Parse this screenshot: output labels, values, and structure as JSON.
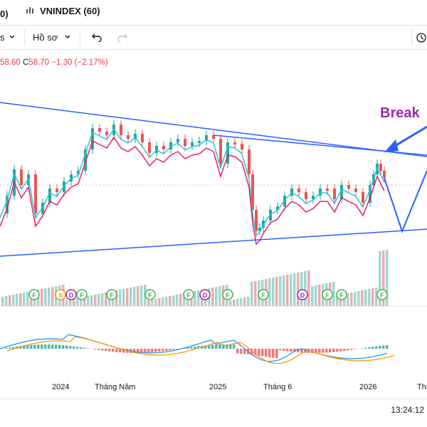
{
  "header": {
    "tab_prev_suffix": "0)",
    "active_tab": "VNINDEX (60)",
    "icon_active_tab": "chart-tab-icon"
  },
  "toolbar": {
    "item_left": "s",
    "profile_label": "Hồ sơ",
    "undo_icon": "undo-icon",
    "redo_icon": "redo-icon",
    "right_icon": "snapshot-icon"
  },
  "ohlc": {
    "l_value": "58.60",
    "c_label": "C",
    "c_value": "58.70",
    "change": "−1.30 (−2.17%)"
  },
  "annotation": {
    "label": "Break",
    "color": "#9c27b0"
  },
  "colors": {
    "up": "#26a69a",
    "down": "#ef5350",
    "trendline": "#2962ff",
    "ma_fast": "#26c6da",
    "ma_slow": "#e91e63",
    "macd": "#2196f3",
    "signal": "#ff9800"
  },
  "events": [
    "F",
    "S",
    "D",
    "F",
    "F",
    "F",
    "F",
    "D",
    "F",
    "F",
    "D",
    "F",
    "F",
    "F"
  ],
  "xaxis": {
    "labels": [
      "2024",
      "Tháng Năm",
      "2025",
      "Tháng 6",
      "2026",
      "Thá"
    ]
  },
  "status": {
    "clock": "13:24:12"
  }
}
